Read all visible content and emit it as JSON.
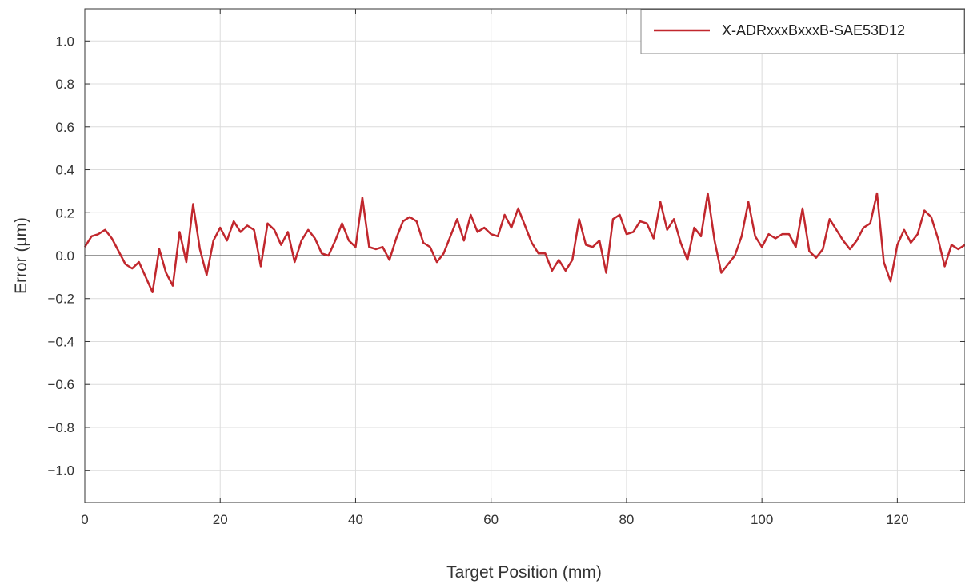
{
  "chart_data": {
    "type": "line",
    "xlabel": "Target Position (mm)",
    "ylabel": "Error (μm)",
    "xlim": [
      0,
      130
    ],
    "ylim": [
      -1.15,
      1.15
    ],
    "x_ticks": [
      0,
      20,
      40,
      60,
      80,
      100,
      120
    ],
    "y_ticks": [
      -1.0,
      -0.8,
      -0.6,
      -0.4,
      -0.2,
      0.0,
      0.2,
      0.4,
      0.6,
      0.8,
      1.0
    ],
    "y_tick_labels": [
      "−1.0",
      "−0.8",
      "−0.6",
      "−0.4",
      "−0.2",
      "0.0",
      "0.2",
      "0.4",
      "0.6",
      "0.8",
      "1.0"
    ],
    "grid": true,
    "zero_line": true,
    "legend_position": "top-right",
    "series": [
      {
        "name": "X-ADRxxxBxxxB-SAE53D12",
        "color": "#c1272d",
        "x": [
          0,
          1,
          2,
          3,
          4,
          5,
          6,
          7,
          8,
          9,
          10,
          11,
          12,
          13,
          14,
          15,
          16,
          17,
          18,
          19,
          20,
          21,
          22,
          23,
          24,
          25,
          26,
          27,
          28,
          29,
          30,
          31,
          32,
          33,
          34,
          35,
          36,
          37,
          38,
          39,
          40,
          41,
          42,
          43,
          44,
          45,
          46,
          47,
          48,
          49,
          50,
          51,
          52,
          53,
          54,
          55,
          56,
          57,
          58,
          59,
          60,
          61,
          62,
          63,
          64,
          65,
          66,
          67,
          68,
          69,
          70,
          71,
          72,
          73,
          74,
          75,
          76,
          77,
          78,
          79,
          80,
          81,
          82,
          83,
          84,
          85,
          86,
          87,
          88,
          89,
          90,
          91,
          92,
          93,
          94,
          95,
          96,
          97,
          98,
          99,
          100,
          101,
          102,
          103,
          104,
          105,
          106,
          107,
          108,
          109,
          110,
          111,
          112,
          113,
          114,
          115,
          116,
          117,
          118,
          119,
          120,
          121,
          122,
          123,
          124,
          125,
          126,
          127,
          128,
          129,
          130
        ],
        "values": [
          0.04,
          0.09,
          0.1,
          0.12,
          0.08,
          0.02,
          -0.04,
          -0.06,
          -0.03,
          -0.1,
          -0.17,
          0.03,
          -0.08,
          -0.14,
          0.11,
          -0.03,
          0.24,
          0.03,
          -0.09,
          0.07,
          0.13,
          0.07,
          0.16,
          0.11,
          0.14,
          0.12,
          -0.05,
          0.15,
          0.12,
          0.05,
          0.11,
          -0.03,
          0.07,
          0.12,
          0.08,
          0.01,
          0.0,
          0.07,
          0.15,
          0.07,
          0.04,
          0.27,
          0.04,
          0.03,
          0.04,
          -0.02,
          0.08,
          0.16,
          0.18,
          0.16,
          0.06,
          0.04,
          -0.03,
          0.01,
          0.09,
          0.17,
          0.07,
          0.19,
          0.11,
          0.13,
          0.1,
          0.09,
          0.19,
          0.13,
          0.22,
          0.14,
          0.06,
          0.01,
          0.01,
          -0.07,
          -0.02,
          -0.07,
          -0.02,
          0.17,
          0.05,
          0.04,
          0.07,
          -0.08,
          0.17,
          0.19,
          0.1,
          0.11,
          0.16,
          0.15,
          0.08,
          0.25,
          0.12,
          0.17,
          0.06,
          -0.02,
          0.13,
          0.09,
          0.29,
          0.07,
          -0.08,
          -0.04,
          0.0,
          0.09,
          0.25,
          0.09,
          0.04,
          0.1,
          0.08,
          0.1,
          0.1,
          0.04,
          0.22,
          0.02,
          -0.01,
          0.03,
          0.17,
          0.12,
          0.07,
          0.03,
          0.07,
          0.13,
          0.15,
          0.29,
          -0.03,
          -0.12,
          0.05,
          0.12,
          0.06,
          0.1,
          0.21,
          0.18,
          0.08,
          -0.05,
          0.05,
          0.03,
          0.05
        ]
      }
    ]
  }
}
